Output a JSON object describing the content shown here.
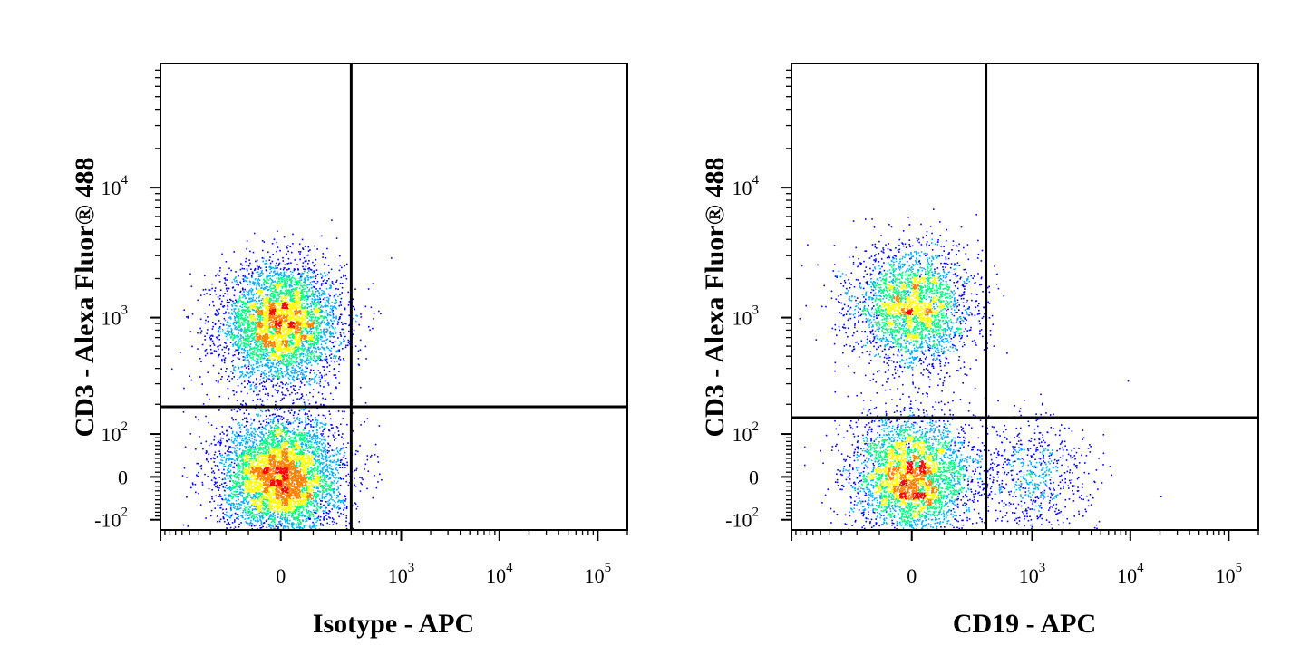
{
  "chart_data": [
    {
      "type": "scatter",
      "title": "",
      "xlabel": "Isotype - APC",
      "ylabel": "CD3 - Alexa Fluor® 488",
      "xscale": "biexponential",
      "yscale": "biexponential",
      "x_ticks": [
        {
          "base": "0",
          "exp": ""
        },
        {
          "base": "10",
          "exp": "3"
        },
        {
          "base": "10",
          "exp": "4"
        },
        {
          "base": "10",
          "exp": "5"
        }
      ],
      "y_ticks": [
        {
          "base": "-10",
          "exp": "2"
        },
        {
          "base": "0",
          "exp": ""
        },
        {
          "base": "10",
          "exp": "2"
        },
        {
          "base": "10",
          "exp": "3"
        },
        {
          "base": "10",
          "exp": "4"
        }
      ],
      "gate": {
        "x": 300,
        "y": 190
      },
      "populations": [
        {
          "name": "",
          "x_center": 0,
          "y_center": 900,
          "count": 4500
        },
        {
          "name": "",
          "x_center": 0,
          "y_center": 0,
          "count": 5200
        }
      ],
      "colormap": [
        "#0000ff",
        "#00b0ff",
        "#00ff80",
        "#ffff00",
        "#ff8000",
        "#ff0000"
      ]
    },
    {
      "type": "scatter",
      "title": "",
      "xlabel": "CD19 - APC",
      "ylabel": "CD3 - Alexa Fluor® 488",
      "xscale": "biexponential",
      "yscale": "biexponential",
      "x_ticks": [
        {
          "base": "0",
          "exp": ""
        },
        {
          "base": "10",
          "exp": "3"
        },
        {
          "base": "10",
          "exp": "4"
        },
        {
          "base": "10",
          "exp": "5"
        }
      ],
      "y_ticks": [
        {
          "base": "-10",
          "exp": "2"
        },
        {
          "base": "0",
          "exp": ""
        },
        {
          "base": "10",
          "exp": "2"
        },
        {
          "base": "10",
          "exp": "3"
        },
        {
          "base": "10",
          "exp": "4"
        }
      ],
      "gate": {
        "x": 330,
        "y": 150
      },
      "populations": [
        {
          "name": "",
          "x_center": 0,
          "y_center": 1200,
          "count": 2800
        },
        {
          "name": "",
          "x_center": 0,
          "y_center": 0,
          "count": 3600
        },
        {
          "name": "",
          "x_center": 1000,
          "y_center": 0,
          "count": 700
        }
      ],
      "colormap": [
        "#0000ff",
        "#00b0ff",
        "#00ff80",
        "#ffff00",
        "#ff8000",
        "#ff0000"
      ]
    }
  ]
}
